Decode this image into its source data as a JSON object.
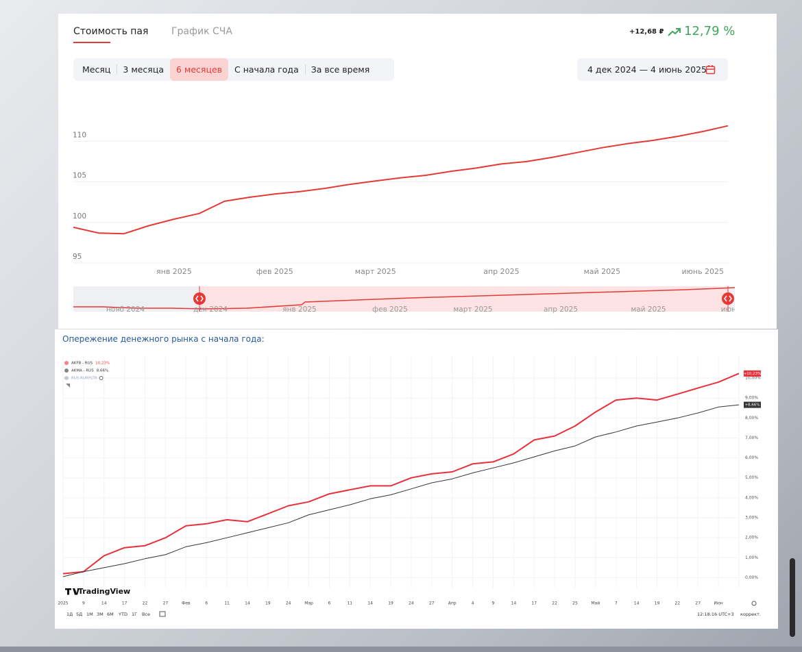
{
  "ui": {
    "tabs": [
      "Стоимость пая",
      "График СЧА"
    ],
    "change_abs": "+12,68 ₽",
    "change_pct": "12,79 %",
    "periods": [
      "Месяц",
      "3 месяца",
      "6 месяцев",
      "С начала года",
      "За все время"
    ],
    "date_range": "4 дек 2024 — 4 июнь 2025",
    "navigator_labels": [
      "нояб 2024",
      "дек 2024",
      "янв 2025",
      "фев 2025",
      "март 2025",
      "апр 2025",
      "май 2025",
      "июн"
    ],
    "section_title": "Опережение денежного рынка с начала года:",
    "tv_logo": "TradingView",
    "tv_ranges": [
      "1Д",
      "5Д",
      "1М",
      "3М",
      "6М",
      "YTD",
      "1Г",
      "Все"
    ],
    "tv_time": "12:18:16 UTC+3",
    "tv_adjust": "коррект."
  },
  "chart_data": [
    {
      "type": "line",
      "color": "#e53935",
      "grid": true,
      "categories": [
        null,
        null,
        null,
        null,
        "янв 2025",
        null,
        null,
        null,
        "фев 2025",
        null,
        null,
        null,
        "март 2025",
        null,
        null,
        null,
        null,
        "апр 2025",
        null,
        null,
        null,
        "май 2025",
        null,
        null,
        null,
        "июнь 2025",
        null
      ],
      "values": [
        99.4,
        98.7,
        98.6,
        99.6,
        100.4,
        101.1,
        102.6,
        103.1,
        103.5,
        103.8,
        104.2,
        104.7,
        105.1,
        105.5,
        105.8,
        106.3,
        106.7,
        107.2,
        107.5,
        108.0,
        108.6,
        109.2,
        109.7,
        110.1,
        110.6,
        111.2,
        111.9
      ],
      "ylim": [
        95,
        115
      ],
      "yticks": [
        95,
        100,
        105,
        110
      ]
    },
    {
      "type": "line",
      "grid": true,
      "categories": [
        "2025",
        "9",
        "14",
        "17",
        "22",
        "27",
        "Фев",
        "6",
        "11",
        "14",
        "19",
        "24",
        "Мар",
        "6",
        "11",
        "14",
        "19",
        "24",
        "27",
        "Апр",
        "4",
        "9",
        "14",
        "17",
        "22",
        "25",
        "Май",
        "7",
        "14",
        "19",
        "22",
        "27",
        "Июн",
        null
      ],
      "series": [
        {
          "name": "AKFB - RUS",
          "legend_value": "10,23%",
          "price_tag": "+10,23%",
          "color": "#e8303a",
          "values": [
            0.2,
            0.3,
            1.1,
            1.5,
            1.6,
            2.0,
            2.6,
            2.7,
            2.9,
            2.8,
            3.2,
            3.6,
            3.8,
            4.2,
            4.4,
            4.6,
            4.6,
            5.0,
            5.2,
            5.3,
            5.7,
            5.8,
            6.2,
            6.9,
            7.1,
            7.6,
            8.3,
            8.9,
            9.0,
            8.9,
            9.2,
            9.5,
            9.8,
            10.23
          ]
        },
        {
          "name": "AKMA - RUS",
          "legend_value": "8,66%",
          "price_tag": "+8,66%",
          "color": "#333333",
          "values": [
            0.05,
            0.3,
            0.5,
            0.7,
            0.95,
            1.15,
            1.55,
            1.75,
            2.0,
            2.25,
            2.5,
            2.75,
            3.15,
            3.4,
            3.65,
            3.95,
            4.15,
            4.45,
            4.75,
            4.95,
            5.25,
            5.5,
            5.75,
            6.05,
            6.35,
            6.6,
            7.05,
            7.3,
            7.6,
            7.8,
            8.0,
            8.25,
            8.55,
            8.66
          ]
        },
        {
          "name": "RUS.RURPLTR",
          "color": "#9aa4c4"
        }
      ],
      "ylim": [
        -0.5,
        11.1
      ],
      "yticks": [
        {
          "value": 0,
          "label": "0,00%"
        },
        {
          "value": 1,
          "label": "1,00%"
        },
        {
          "value": 2,
          "label": "2,00%"
        },
        {
          "value": 3,
          "label": "3,00%"
        },
        {
          "value": 4,
          "label": "4,00%"
        },
        {
          "value": 5,
          "label": "5,00%"
        },
        {
          "value": 6,
          "label": "6,00%"
        },
        {
          "value": 7,
          "label": "7,00%"
        },
        {
          "value": 8,
          "label": "8,00%"
        },
        {
          "value": 9,
          "label": "9,00%"
        },
        {
          "value": 10,
          "label": "10,00%"
        }
      ]
    }
  ]
}
